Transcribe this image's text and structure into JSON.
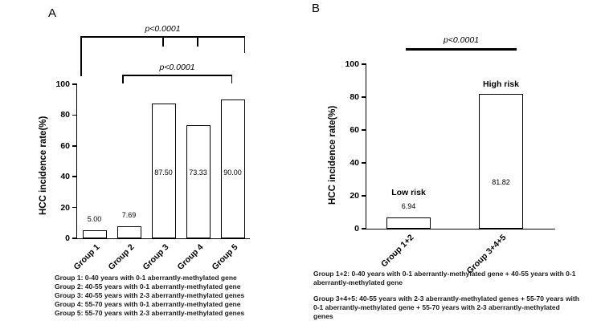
{
  "figure": {
    "panels": [
      {
        "label": "A",
        "ylabel": "HCC incidence rate(%)",
        "significance": [
          {
            "text": "p<0.0001"
          },
          {
            "text": "p<0.0001"
          }
        ],
        "footnote_lines": [
          "Group 1: 0-40 years with 0-1 aberrantly-methylated gene",
          "Group 2: 40-55 years with 0-1 aberrantly-methylated gene",
          "Group 3: 40-55 years with 2-3 aberrantly-methylated genes",
          "Group 4: 55-70 years with 0-1 aberrantly-methylated gene",
          "Group 5: 55-70 years with 2-3 aberrantly-methylated genes"
        ]
      },
      {
        "label": "B",
        "ylabel": "HCC incidence rate(%)",
        "significance": [
          {
            "text": "p<0.0001"
          }
        ],
        "footnote_paragraphs": [
          "Group 1+2: 0-40 years with 0-1 aberrantly-methylated gene + 40-55 years with 0-1 aberrantly-methylated gene",
          "Group 3+4+5: 40-55 years with 2-3 aberrantly-methylated genes + 55-70 years with 0-1 aberrantly-methylated gene + 55-70 years with 2-3 aberrantly-methylated genes"
        ]
      }
    ]
  },
  "chart_data": [
    {
      "type": "bar",
      "panel": "A",
      "title": "",
      "xlabel": "",
      "ylabel": "HCC incidence rate(%)",
      "categories": [
        "Group 1",
        "Group 2",
        "Group 3",
        "Group 4",
        "Group 5"
      ],
      "values": [
        5.0,
        7.69,
        87.5,
        73.33,
        90.0
      ],
      "value_labels": [
        "5.00",
        "7.69",
        "87.50",
        "73.33",
        "90.00"
      ],
      "ylim": [
        0,
        100
      ],
      "yticks": [
        0,
        20,
        40,
        60,
        80,
        100
      ],
      "grid": false,
      "legend": "none",
      "bar_fill": "#ffffff",
      "bar_border": "#000000",
      "annotations": [
        "p<0.0001 bracket spanning Group 1 to Groups 3/4/5",
        "p<0.0001 bracket spanning Group 2 to Group 5"
      ]
    },
    {
      "type": "bar",
      "panel": "B",
      "title": "",
      "xlabel": "",
      "ylabel": "HCC incidence rate(%)",
      "categories": [
        "Group 1+2",
        "Group 3+4+5"
      ],
      "values": [
        6.94,
        81.82
      ],
      "value_labels": [
        "6.94",
        "81.82"
      ],
      "bar_labels": [
        "Low risk",
        "High risk"
      ],
      "ylim": [
        0,
        100
      ],
      "yticks": [
        0,
        20,
        40,
        60,
        80,
        100
      ],
      "grid": false,
      "legend": "none",
      "bar_fill": "#ffffff",
      "bar_border": "#000000",
      "annotations": [
        "p<0.0001 bar between Group 1+2 and Group 3+4+5"
      ]
    }
  ]
}
